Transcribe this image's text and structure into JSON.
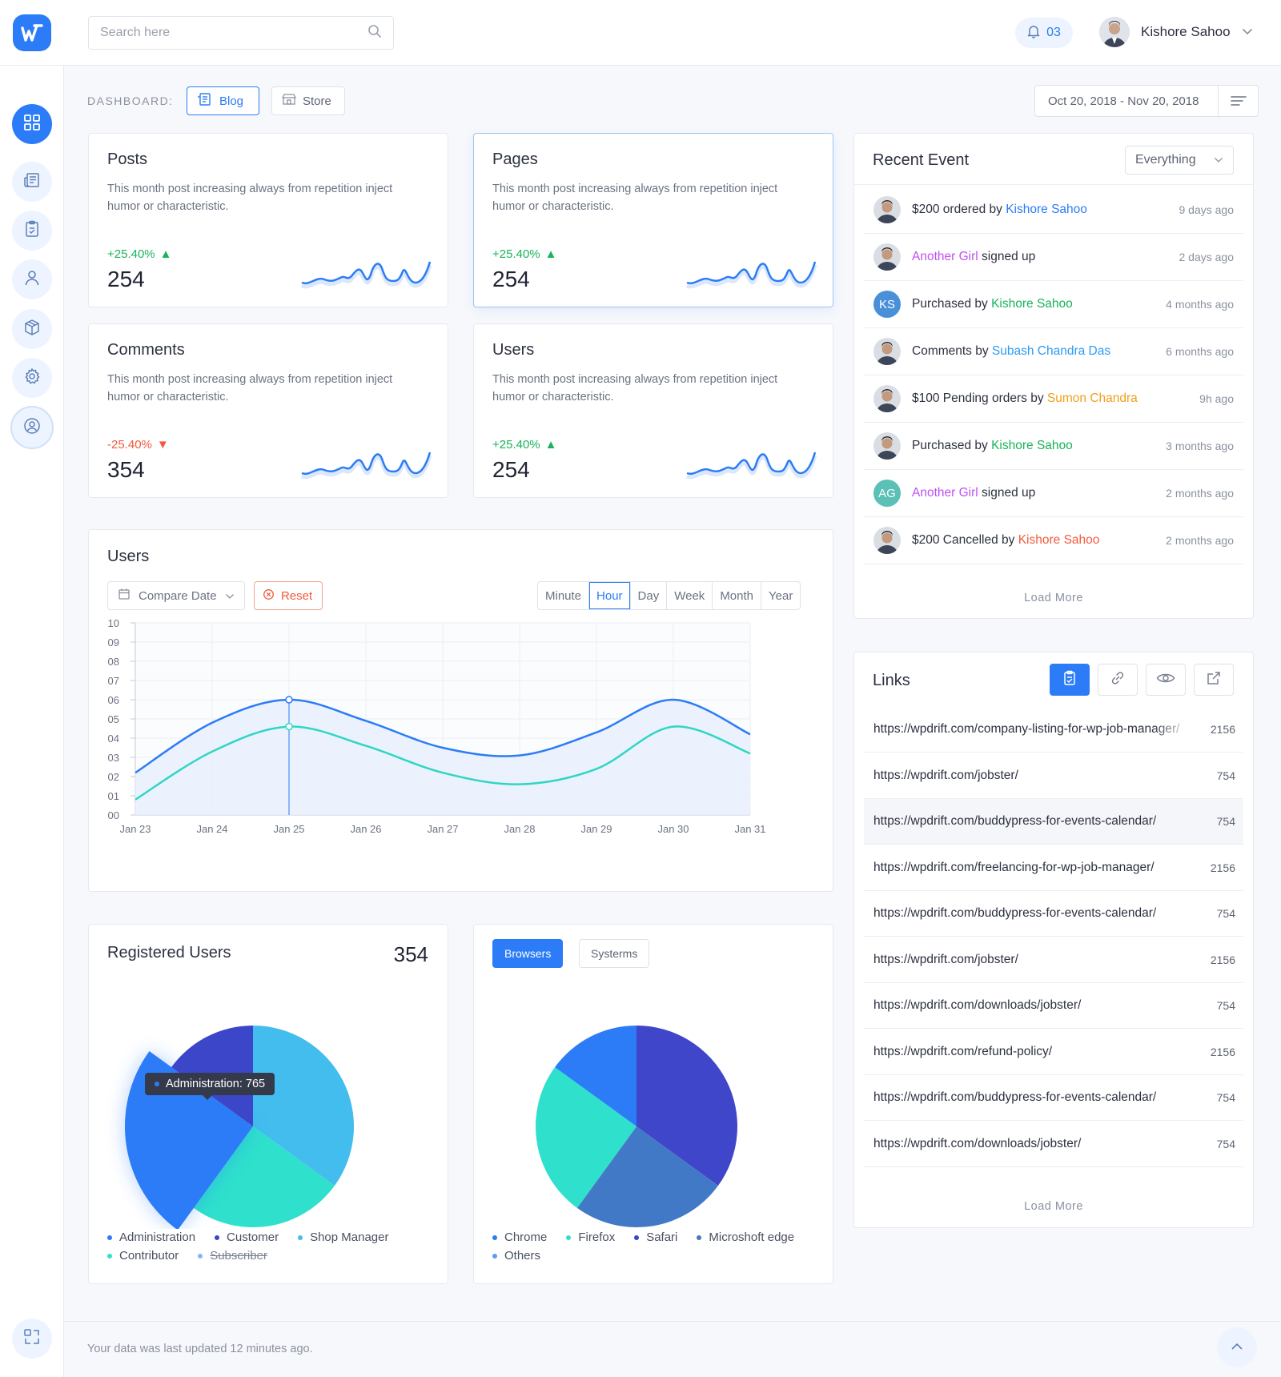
{
  "header": {
    "search_placeholder": "Search here",
    "notification_count": "03",
    "user_name": "Kishore Sahoo"
  },
  "sidebar": {
    "items": [
      "dashboard",
      "blog",
      "tasks",
      "users",
      "store",
      "settings",
      "account"
    ]
  },
  "dashboard": {
    "label": "DASHBOARD:",
    "tabs": [
      {
        "label": "Blog",
        "active": true
      },
      {
        "label": "Store",
        "active": false
      }
    ],
    "date_range": "Oct 20, 2018 - Nov 20, 2018"
  },
  "stats": [
    {
      "title": "Posts",
      "desc": "This month post increasing always from repetition inject humor or characteristic.",
      "change": "+25.40%",
      "trend": "up",
      "value": "254"
    },
    {
      "title": "Pages",
      "desc": "This month post increasing always from repetition inject humor or characteristic.",
      "change": "+25.40%",
      "trend": "up",
      "value": "254"
    },
    {
      "title": "Comments",
      "desc": "This month post increasing always from repetition inject humor or characteristic.",
      "change": "-25.40%",
      "trend": "down",
      "value": "354"
    },
    {
      "title": "Users",
      "desc": "This month post increasing always from repetition inject humor or characteristic.",
      "change": "+25.40%",
      "trend": "up",
      "value": "254"
    }
  ],
  "users_chart": {
    "title": "Users",
    "compare_label": "Compare Date",
    "reset_label": "Reset",
    "periods": [
      "Minute",
      "Hour",
      "Day",
      "Week",
      "Month",
      "Year"
    ],
    "active_period": "Hour"
  },
  "chart_data": {
    "type": "line",
    "title": "Users",
    "x": [
      "Jan 23",
      "Jan 24",
      "Jan 25",
      "Jan 26",
      "Jan 27",
      "Jan 28",
      "Jan 29",
      "Jan 30",
      "Jan 31"
    ],
    "y_ticks": [
      "00",
      "01",
      "02",
      "03",
      "04",
      "05",
      "06",
      "07",
      "08",
      "09",
      "10"
    ],
    "ylim": [
      0,
      10
    ],
    "series": [
      {
        "name": "series-1",
        "color": "#2b7cf6",
        "values": [
          2.2,
          4.8,
          6.0,
          4.9,
          3.5,
          3.1,
          4.3,
          6.0,
          4.2
        ]
      },
      {
        "name": "series-2",
        "color": "#2fd6c3",
        "values": [
          0.8,
          3.3,
          4.6,
          3.6,
          2.2,
          1.6,
          2.4,
          4.6,
          3.2
        ]
      }
    ],
    "highlight_index": 2
  },
  "recent_events": {
    "title": "Recent Event",
    "filter": "Everything",
    "load_more": "Load More",
    "items": [
      {
        "pre": "$200 ordered by ",
        "name": "Kishore Sahoo",
        "post": "",
        "name_color": "#2b7cf6",
        "time": "9 days ago",
        "avatar": "photo",
        "initials": ""
      },
      {
        "pre": "",
        "name": "Another Girl",
        "post": " signed up",
        "name_color": "#c14ff2",
        "time": "2 days ago",
        "avatar": "photo",
        "initials": ""
      },
      {
        "pre": "Purchased by ",
        "name": "Kishore Sahoo",
        "post": "",
        "name_color": "#19b35b",
        "time": "4 months ago",
        "avatar": "initials",
        "initials": "KS",
        "avatar_color": "#4a90d9"
      },
      {
        "pre": "Comments by ",
        "name": "Subash Chandra Das",
        "post": "",
        "name_color": "#2b9bf4",
        "time": "6 months ago",
        "avatar": "photo",
        "initials": ""
      },
      {
        "pre": "$100 Pending orders by ",
        "name": "Sumon Chandra",
        "post": "",
        "name_color": "#f0a01a",
        "time": "9h ago",
        "avatar": "photo",
        "initials": ""
      },
      {
        "pre": "Purchased by ",
        "name": "Kishore Sahoo",
        "post": "",
        "name_color": "#19b35b",
        "time": "3 months ago",
        "avatar": "photo",
        "initials": ""
      },
      {
        "pre": "",
        "name": "Another Girl",
        "post": " signed up",
        "name_color": "#c14ff2",
        "time": "2 months ago",
        "avatar": "initials",
        "initials": "AG",
        "avatar_color": "#5bc0b5"
      },
      {
        "pre": "$200 Cancelled by ",
        "name": "Kishore Sahoo",
        "post": "",
        "name_color": "#f25a3c",
        "time": "2 months ago",
        "avatar": "photo",
        "initials": ""
      }
    ]
  },
  "links": {
    "title": "Links",
    "load_more": "Load More",
    "items": [
      {
        "url": "https://wpdrift.com/company-listing-for-wp-job-manager/",
        "count": "2156"
      },
      {
        "url": "https://wpdrift.com/jobster/",
        "count": "754"
      },
      {
        "url": "https://wpdrift.com/buddypress-for-events-calendar/",
        "count": "754"
      },
      {
        "url": "https://wpdrift.com/freelancing-for-wp-job-manager/",
        "count": "2156"
      },
      {
        "url": "https://wpdrift.com/buddypress-for-events-calendar/",
        "count": "754"
      },
      {
        "url": "https://wpdrift.com/jobster/",
        "count": "2156"
      },
      {
        "url": "https://wpdrift.com/downloads/jobster/",
        "count": "754"
      },
      {
        "url": "https://wpdrift.com/refund-policy/",
        "count": "2156"
      },
      {
        "url": "https://wpdrift.com/buddypress-for-events-calendar/",
        "count": "754"
      },
      {
        "url": "https://wpdrift.com/downloads/jobster/",
        "count": "754"
      }
    ]
  },
  "registered_users": {
    "title": "Registered Users",
    "total": "354",
    "tooltip": "Administration: 765",
    "slices": [
      {
        "name": "Shop Manager",
        "value": 35,
        "color": "#43bdee"
      },
      {
        "name": "Contributor",
        "value": 25,
        "color": "#2fe0cc"
      },
      {
        "name": "Administration",
        "value": 25,
        "color": "#2b7cf6"
      },
      {
        "name": "Customer",
        "value": 15,
        "color": "#3b46c9"
      }
    ],
    "legend": [
      {
        "name": "Administration",
        "color": "#2b7cf6",
        "struck": false
      },
      {
        "name": "Customer",
        "color": "#3b46c9",
        "struck": false
      },
      {
        "name": "Shop Manager",
        "color": "#43bdee",
        "struck": false
      },
      {
        "name": "Contributor",
        "color": "#2fe0cc",
        "struck": false
      },
      {
        "name": "Subscriber",
        "color": "#8ab4f8",
        "struck": true
      }
    ]
  },
  "browsers": {
    "tabs": [
      "Browsers",
      "Systerms"
    ],
    "active_tab": "Browsers",
    "slices": [
      {
        "name": "Safari",
        "value": 35,
        "color": "#3f46c9"
      },
      {
        "name": "Microshoft edge",
        "value": 25,
        "color": "#4279c6"
      },
      {
        "name": "Firefox",
        "value": 25,
        "color": "#2fe0cc"
      },
      {
        "name": "Chrome",
        "value": 15,
        "color": "#2b7cf6"
      }
    ],
    "legend": [
      {
        "name": "Chrome",
        "color": "#2b7cf6"
      },
      {
        "name": "Firefox",
        "color": "#2fe0cc"
      },
      {
        "name": "Safari",
        "color": "#3b46c9"
      },
      {
        "name": "Microshoft edge",
        "color": "#4279c6"
      },
      {
        "name": "Others",
        "color": "#5d9cf2"
      }
    ]
  },
  "footer": {
    "text": "Your data was last updated 12 minutes ago."
  }
}
